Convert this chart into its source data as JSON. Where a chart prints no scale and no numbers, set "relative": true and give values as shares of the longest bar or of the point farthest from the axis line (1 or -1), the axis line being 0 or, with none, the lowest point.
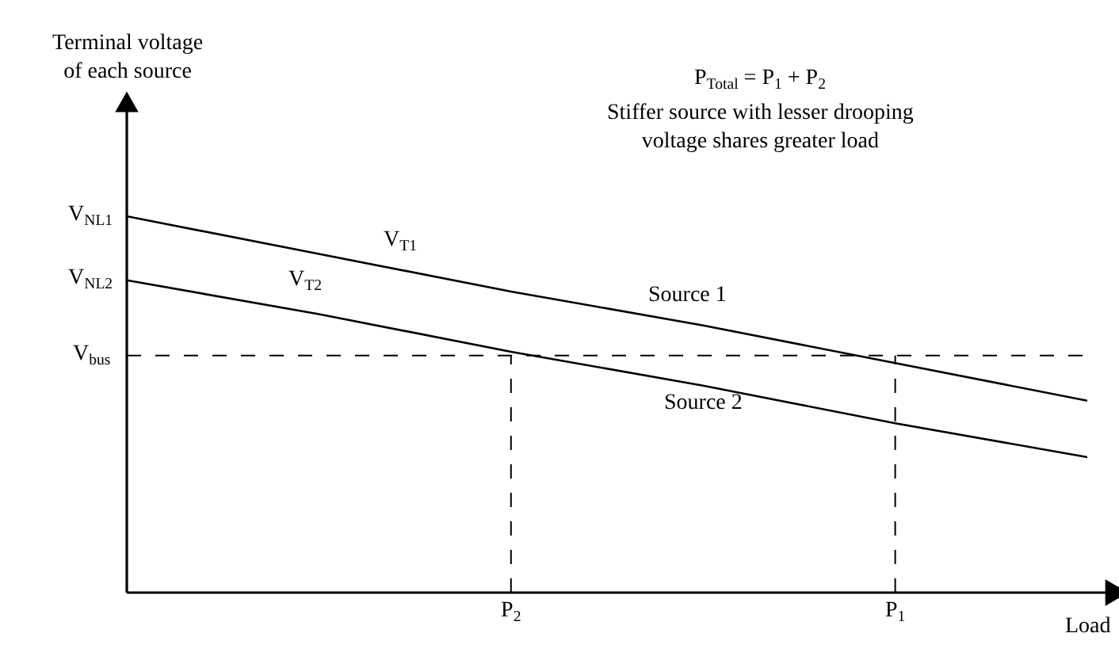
{
  "chart_data": {
    "type": "line",
    "relative": true,
    "xlabel": "Load",
    "categories": [
      null,
      null,
      "P$_{2}$",
      null,
      "P$_{1}$",
      null
    ],
    "series": [
      {
        "name": "Source 1",
        "color": "#000000",
        "values": [
          1,
          0.9,
          0.8,
          0.71,
          0.61,
          0.51
        ]
      },
      {
        "name": "Source 2",
        "color": "#000000",
        "values": [
          0.83,
          0.74,
          0.64,
          0.55,
          0.45,
          0.36
        ]
      }
    ],
    "ref_lines": [
      {
        "axis": "y",
        "value": 0.63,
        "label": "V$_{bus}$",
        "line_style": "dashed",
        "color": "#000000"
      },
      {
        "axis": "x",
        "value": "P$_{2}$",
        "line_style": "dashed",
        "color": "#000000"
      },
      {
        "axis": "x",
        "value": "P$_{1}$",
        "line_style": "dashed",
        "color": "#000000"
      }
    ],
    "annotations": [
      "Terminal voltage\nof each source",
      "V$_{NL1}$",
      "V$_{NL2}$",
      "V$_{T1}$",
      "V$_{T2}$",
      "P$_{Total}$ = P$_{1}$ + P$_{2}$",
      "Stiffer source with lesser drooping\nvoltage shares greater load"
    ],
    "grid": false,
    "legend": false,
    "marker": "none",
    "line_style": "solid"
  }
}
